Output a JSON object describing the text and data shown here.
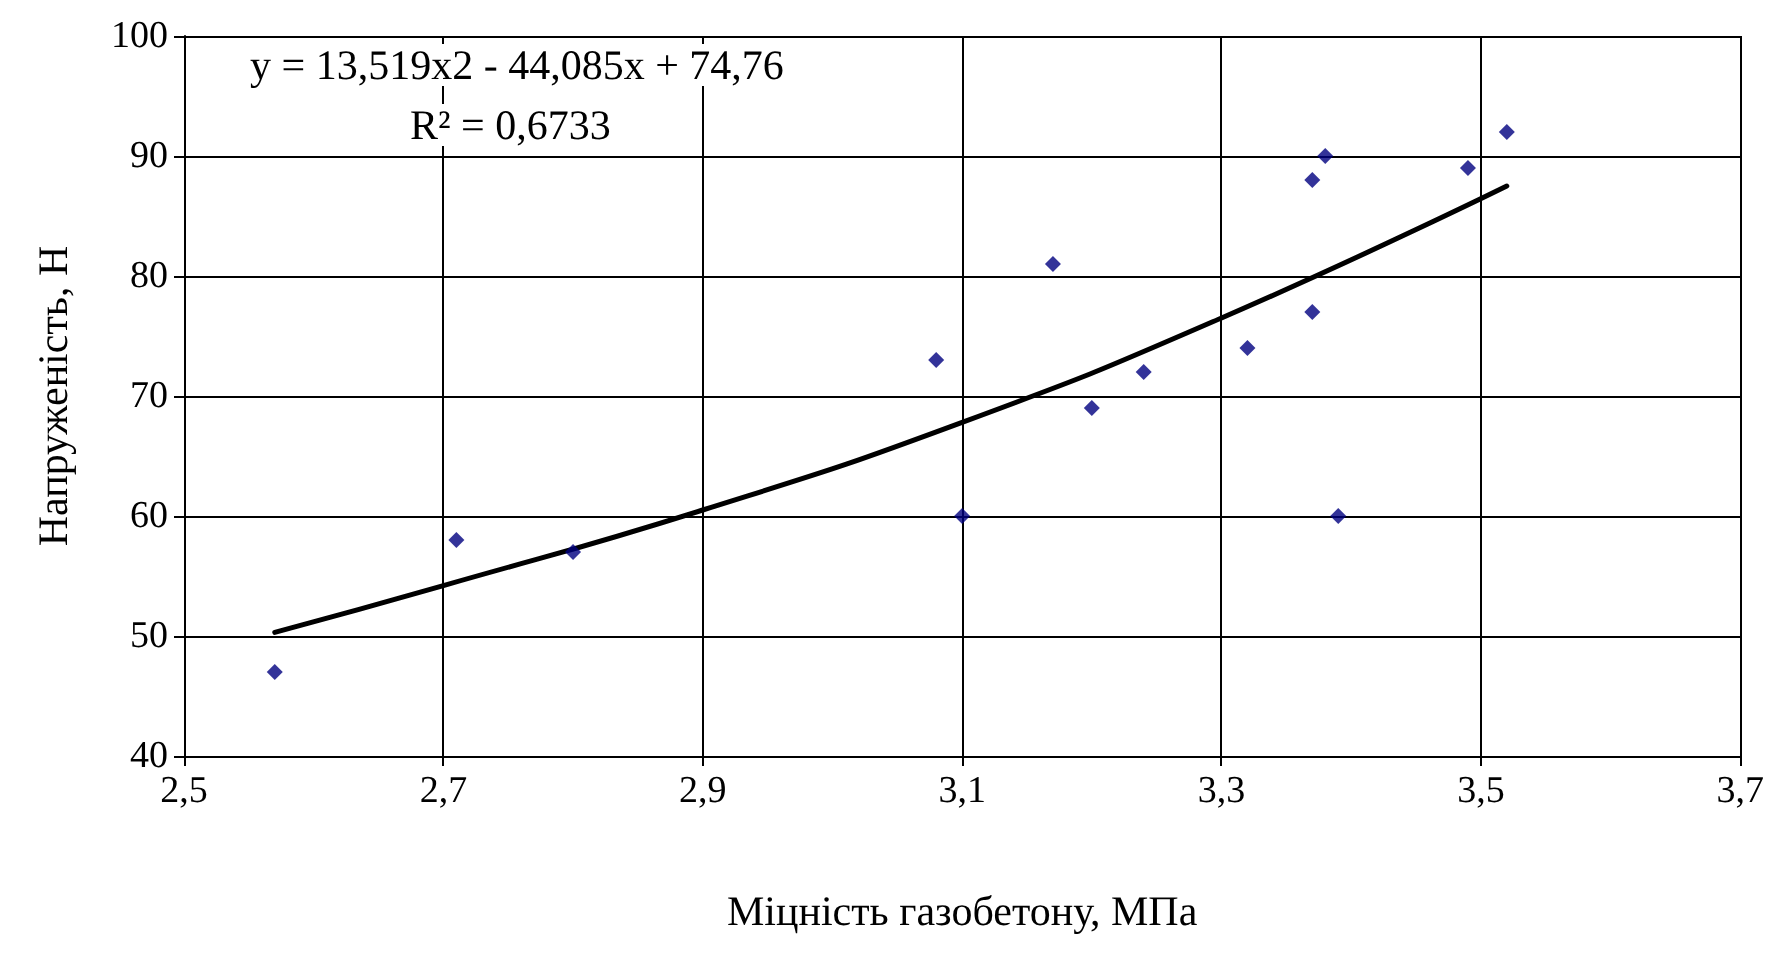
{
  "chart_data": {
    "type": "scatter",
    "xlabel": "Міцність газобетону, МПа",
    "ylabel": "Напруженість, Н",
    "annotations": [
      "y = 13,519x2 - 44,085x + 74,76",
      "R² = 0,6733"
    ],
    "xlim": [
      2.5,
      3.7
    ],
    "xticks": [
      {
        "value": 2.5,
        "label": "2,5"
      },
      {
        "value": 2.7,
        "label": "2,7"
      },
      {
        "value": 2.9,
        "label": "2,9"
      },
      {
        "value": 3.1,
        "label": "3,1"
      },
      {
        "value": 3.3,
        "label": "3,3"
      },
      {
        "value": 3.5,
        "label": "3,5"
      },
      {
        "value": 3.7,
        "label": "3,7"
      }
    ],
    "ylim": [
      40,
      100
    ],
    "yticks": [
      40,
      50,
      60,
      70,
      80,
      90,
      100
    ],
    "grid": true,
    "marker": "diamond",
    "series": [
      {
        "color": "#000080",
        "x": [
          2.57,
          2.71,
          2.8,
          3.08,
          3.1,
          3.17,
          3.2,
          3.24,
          3.32,
          3.37,
          3.38,
          3.37,
          3.39,
          3.49,
          3.52
        ],
        "values": [
          47,
          58,
          57,
          73,
          60,
          81,
          69,
          72,
          74,
          88,
          90,
          77,
          60,
          89,
          92
        ]
      },
      {
        "type": "line",
        "color": "#000000",
        "marker": "none",
        "line_style": "solid",
        "x": [
          2.57,
          2.7,
          2.9,
          3.1,
          3.3,
          3.52
        ],
        "values": [
          50.3,
          54.2,
          60.5,
          67.8,
          76.5,
          87.5
        ]
      }
    ]
  }
}
